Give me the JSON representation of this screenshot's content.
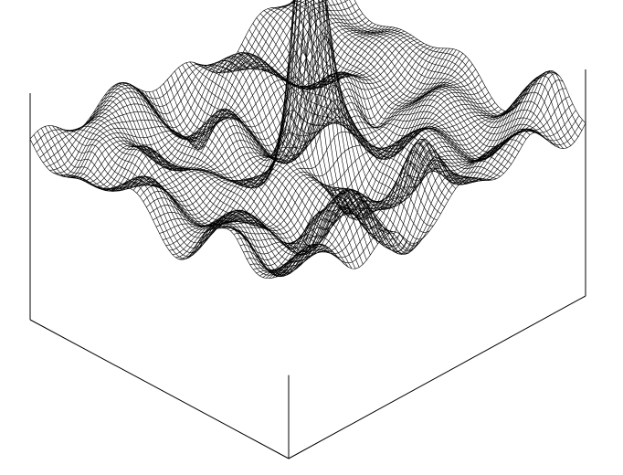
{
  "chart_data": {
    "type": "surface",
    "title": "",
    "xlabel": "",
    "ylabel": "",
    "zlabel": "",
    "grid": false,
    "legend": "none",
    "render_style": "wireframe",
    "line_color": "#000000",
    "background_color": "#ffffff",
    "x_range": [
      -1,
      1
    ],
    "y_range": [
      -1,
      1
    ],
    "z_range": [
      -0.6,
      1.2
    ],
    "peak": {
      "x": 0,
      "y": 0,
      "z": 1.0
    },
    "edge_value_max": 0.38
  }
}
